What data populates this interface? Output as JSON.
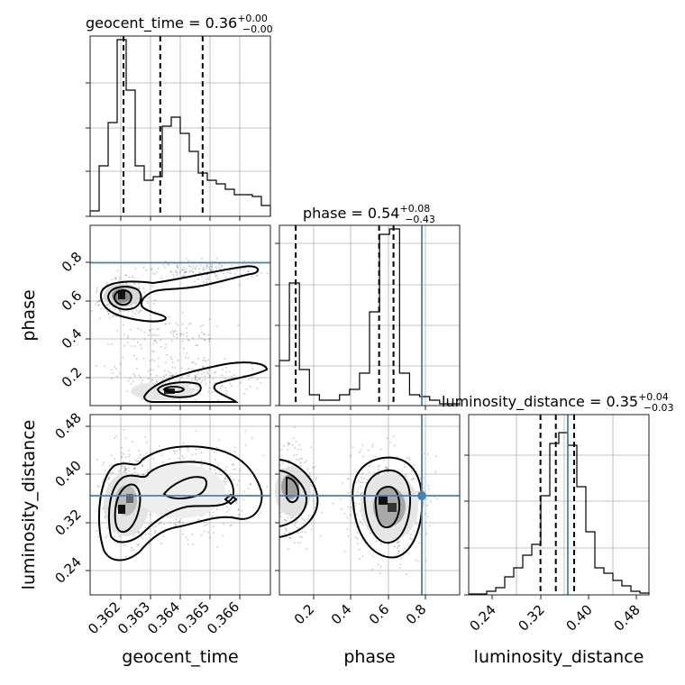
{
  "chart_data": {
    "type": "corner",
    "parameters": [
      "geocent_time",
      "phase",
      "luminosity_distance"
    ],
    "truth": {
      "geocent_time": null,
      "phase": 0.75,
      "luminosity_distance": 0.355
    },
    "titles": [
      {
        "param": "geocent_time",
        "text": "geocent_time = 0.36",
        "sup": "+0.00",
        "sub": "−0.00"
      },
      {
        "param": "phase",
        "text": "phase = 0.54",
        "sup": "+0.08",
        "sub": "−0.43"
      },
      {
        "param": "luminosity_distance",
        "text": "luminosity_distance = 0.35",
        "sup": "+0.04",
        "sub": "−0.03"
      }
    ],
    "axes": {
      "geocent_time": {
        "range": [
          0.3617,
          0.3671
        ],
        "ticks": [
          0.362,
          0.363,
          0.364,
          0.365,
          0.366
        ],
        "labels": [
          "0.362",
          "0.363",
          "0.364",
          "0.365",
          "0.366"
        ],
        "xlabel": "geocent_time"
      },
      "phase": {
        "range": [
          0.02,
          0.96
        ],
        "ticks": [
          0.2,
          0.4,
          0.6,
          0.8
        ],
        "labels": [
          "0.2",
          "0.4",
          "0.6",
          "0.8"
        ],
        "xlabel": "phase",
        "ylabel": "phase"
      },
      "luminosity_distance": {
        "range": [
          0.2,
          0.5
        ],
        "ticks": [
          0.24,
          0.32,
          0.4,
          0.48
        ],
        "labels": [
          "0.24",
          "0.32",
          "0.40",
          "0.48"
        ],
        "xlabel": "luminosity_distance",
        "ylabel": "luminosity_distance"
      }
    },
    "histograms": {
      "geocent_time": {
        "quantiles": [
          0.3627,
          0.3638,
          0.36507
        ],
        "counts": [
          0.03,
          0.28,
          0.52,
          0.98,
          0.7,
          0.28,
          0.2,
          0.22,
          0.5,
          0.55,
          0.46,
          0.36,
          0.24,
          0.2,
          0.18,
          0.15,
          0.12,
          0.12,
          0.11,
          0.06
        ]
      },
      "phase": {
        "quantiles": [
          0.105,
          0.54,
          0.615
        ],
        "counts": [
          0.25,
          0.68,
          0.2,
          0.06,
          0.03,
          0.03,
          0.06,
          0.09,
          0.18,
          0.52,
          0.95,
          0.98,
          0.18,
          0.06,
          0.05,
          0.03,
          0.01,
          0.01
        ]
      },
      "luminosity_distance": {
        "quantiles": [
          0.3195,
          0.345,
          0.3755
        ],
        "counts": [
          0.005,
          0.005,
          0.02,
          0.04,
          0.1,
          0.15,
          0.22,
          0.28,
          0.55,
          0.84,
          0.9,
          0.83,
          0.6,
          0.35,
          0.15,
          0.12,
          0.08,
          0.05,
          0.02,
          0.01
        ]
      }
    },
    "grid": true
  }
}
